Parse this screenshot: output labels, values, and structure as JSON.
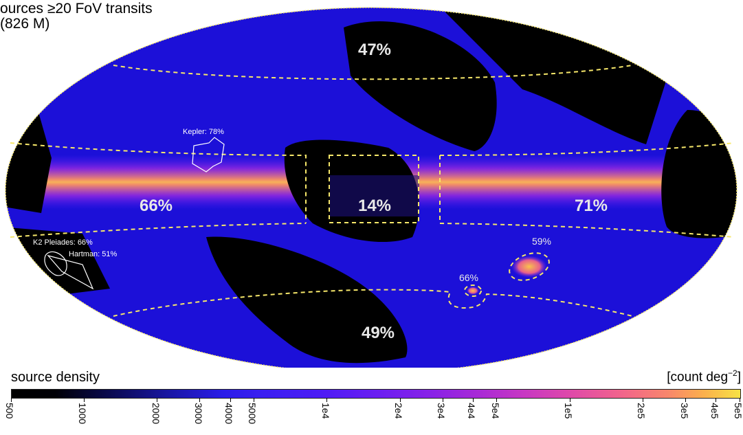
{
  "title_line1": "ources ≥20 FoV transits",
  "title_line2": "(826 M)",
  "colors": {
    "background_sky": "#1c10d8",
    "galactic_plane": "#f39a5c",
    "no_coverage": "#000000",
    "dashed_region": "#f7e86a",
    "footprint_outline": "#ffffff"
  },
  "region_labels": [
    {
      "id": "north-cap",
      "text": "47%"
    },
    {
      "id": "plane-west",
      "text": "66%"
    },
    {
      "id": "galactic-center",
      "text": "14%"
    },
    {
      "id": "plane-east",
      "text": "71%"
    },
    {
      "id": "south-cap",
      "text": "49%"
    },
    {
      "id": "lmc",
      "text": "59%"
    },
    {
      "id": "smc",
      "text": "66%"
    }
  ],
  "field_labels": [
    {
      "id": "kepler",
      "text": "Kepler: 78%"
    },
    {
      "id": "k2-pleiades",
      "text": "K2 Pleiades: 66%"
    },
    {
      "id": "hartman",
      "text": "Hartman: 51%"
    }
  ],
  "colorbar": {
    "title": "source density",
    "unit": "[count deg",
    "unit_exp": "−2",
    "unit_close": "]",
    "scale": "log",
    "range": [
      500,
      500000
    ],
    "ticks": [
      "500",
      "1000",
      "2000",
      "3000",
      "4000",
      "5000",
      "1e4",
      "2e4",
      "3e4",
      "4e4",
      "5e4",
      "1e5",
      "2e5",
      "3e5",
      "4e5",
      "5e5"
    ],
    "tick_values": [
      500,
      1000,
      2000,
      3000,
      4000,
      5000,
      10000,
      20000,
      30000,
      40000,
      50000,
      100000,
      200000,
      300000,
      400000,
      500000
    ]
  }
}
